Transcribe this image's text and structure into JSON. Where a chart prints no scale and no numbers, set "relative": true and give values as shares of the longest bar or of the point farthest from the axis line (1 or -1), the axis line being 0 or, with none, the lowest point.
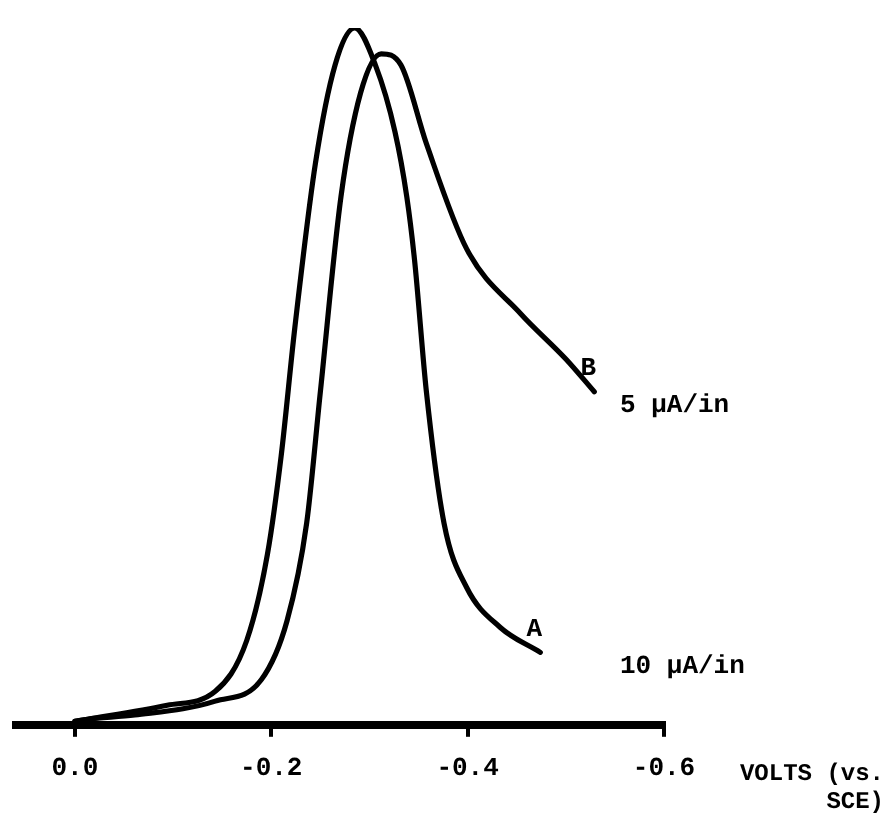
{
  "chart_data": {
    "type": "line",
    "relative": true,
    "xlabel": "VOLTS (vs. SCE)",
    "xlim": [
      0.06,
      -0.6
    ],
    "xticks": [
      {
        "value": 0,
        "label": "0.0"
      },
      -0.2,
      -0.4,
      -0.6
    ],
    "grid": false,
    "legend": false,
    "marker": "none",
    "line_style": "solid",
    "annotations": [
      "10 µA/in",
      "5 µA/in"
    ],
    "series": [
      {
        "name": "A",
        "color": "#000000",
        "x": [
          0,
          -0.013,
          -0.094,
          -0.143,
          -0.175,
          -0.196,
          -0.21,
          -0.224,
          -0.245,
          -0.265,
          -0.285,
          -0.306,
          -0.326,
          -0.338,
          -0.346,
          -0.358,
          -0.376,
          -0.399,
          -0.433,
          -0.474
        ],
        "values": [
          0.005,
          0.008,
          0.028,
          0.048,
          0.121,
          0.244,
          0.385,
          0.57,
          0.806,
          0.947,
          1,
          0.947,
          0.851,
          0.758,
          0.666,
          0.478,
          0.289,
          0.197,
          0.14,
          0.104
        ]
      },
      {
        "name": "B",
        "color": "#000000",
        "x": [
          0,
          -0.013,
          -0.061,
          -0.143,
          -0.19,
          -0.216,
          -0.236,
          -0.25,
          -0.271,
          -0.291,
          -0.312,
          -0.332,
          -0.358,
          -0.399,
          -0.454,
          -0.5,
          -0.529
        ],
        "values": [
          0.005,
          0.008,
          0.014,
          0.034,
          0.065,
          0.149,
          0.289,
          0.478,
          0.758,
          0.907,
          0.963,
          0.947,
          0.834,
          0.683,
          0.59,
          0.525,
          0.478
        ]
      }
    ]
  }
}
